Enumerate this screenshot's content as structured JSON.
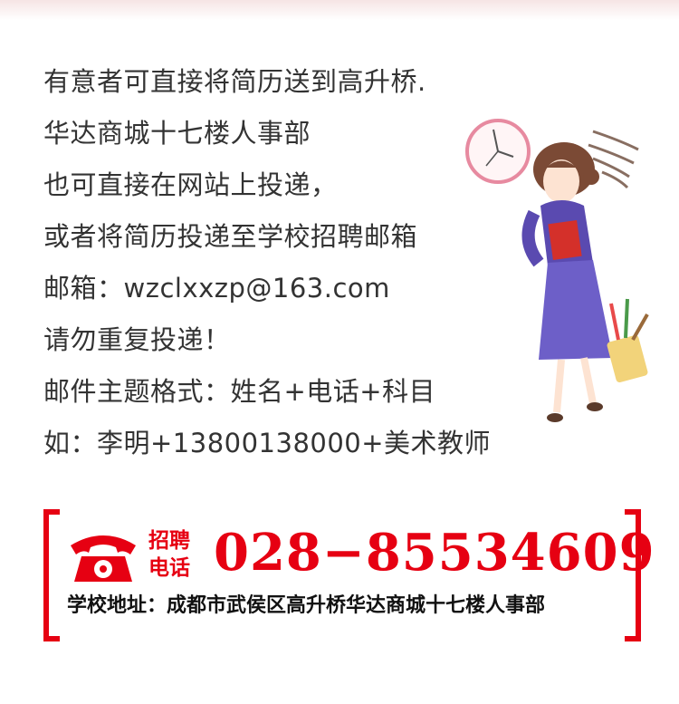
{
  "info_lines": [
    "有意者可直接将简历送到高升桥.",
    "华达商城十七楼人事部",
    "也可直接在网站上投递，",
    "或者将简历投递至学校招聘邮箱",
    "邮箱：wzclxxzp@163.com",
    "请勿重复投递！",
    "邮件主题格式：姓名+电话+科目",
    "如：李明+13800138000+美术教师"
  ],
  "contact": {
    "hire_label_1": "招聘",
    "hire_label_2": "电话",
    "phone": "028−85534609",
    "address": "学校地址：成都市武侯区高升桥华达商城十七楼人事部"
  },
  "colors": {
    "accent": "#e60012",
    "text": "#333333"
  }
}
